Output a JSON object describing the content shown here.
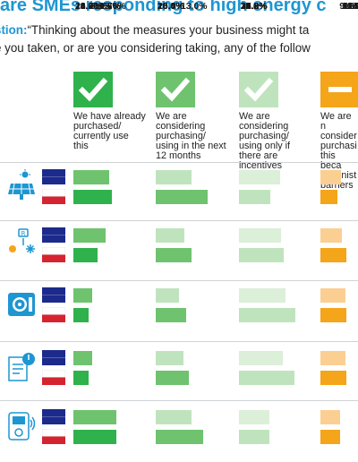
{
  "title": "are SMEs responding to high energy c",
  "question": {
    "label": "stion:",
    "line1": "“Thinking about the measures your business might ta",
    "line2": "e you taken, or are you considering taking, any of the follow"
  },
  "colors": {
    "title": "#1e96d2",
    "green_dark": "#2fb24c",
    "green_mid": "#6fc36f",
    "green_light": "#bfe4bd",
    "green_pale": "#dcefd9",
    "orange": "#f5a519",
    "orange_light": "#fbcf92",
    "flag_blue": "#1c2a8c",
    "flag_red": "#d62330"
  },
  "chart_data": {
    "type": "bar",
    "groups": [
      "UK",
      "Poland"
    ],
    "categories": [
      "We have already purchased/ currently use this",
      "We are considering purchasing/ using in the next 12 months",
      "We are considering purchasing/ using only if there are incentives",
      "We are n consider purchasi this beca administ barriers"
    ],
    "category_lines": [
      "We have already\npurchased/\ncurrently use\nthis",
      "We are\nconsidering\npurchasing/\nusing in the next\n12 months",
      "We are\nconsidering\npurchasing/\nusing only if\nthere are\nincentives",
      "We are n\nconsider\npurchasi\nthis beca\nadminist\nbarriers"
    ],
    "measures": [
      {
        "icon": "solar-panel-icon",
        "values": [
          [
            "20.2%",
            "21.6%"
          ],
          [
            "20.0%",
            "28.8%"
          ],
          [
            "22.9%",
            "17.6%"
          ],
          [
            "11.4",
            "9.6%"
          ]
        ]
      },
      {
        "icon": "heat-pump-icon",
        "values": [
          [
            "18.2%",
            "13.6%"
          ],
          [
            "16.0%",
            "20.0%"
          ],
          [
            "23.3%",
            "25.2%"
          ],
          [
            "12",
            "14.4%"
          ]
        ]
      },
      {
        "icon": "air-conditioner-icon",
        "values": [
          [
            "10.7%",
            "8.4%"
          ],
          [
            "13.0%",
            "16.8%"
          ],
          [
            "25.8%",
            "31.6%"
          ],
          [
            "14",
            "14.4%"
          ]
        ]
      },
      {
        "icon": "energy-audit-document-icon",
        "values": [
          [
            "10.6%",
            "8.4%"
          ],
          [
            "15.4%",
            "18.4%"
          ],
          [
            "24.6%",
            "30.8%"
          ],
          [
            "14.0%",
            "14.4%"
          ]
        ]
      },
      {
        "icon": "smart-meter-icon",
        "values": [
          [
            "23.9%",
            "24.0%"
          ],
          [
            "20.0%",
            "26.4%"
          ],
          [
            "17.2%",
            "16.8%"
          ],
          [
            "10.9",
            "11.2"
          ]
        ]
      }
    ]
  }
}
